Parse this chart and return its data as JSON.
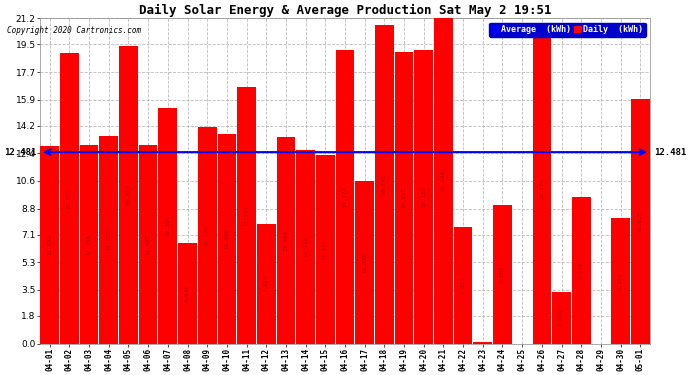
{
  "title": "Daily Solar Energy & Average Production Sat May 2 19:51",
  "copyright": "Copyright 2020 Cartronics.com",
  "average_value": 12.481,
  "bar_color": "#FF0000",
  "average_line_color": "#0000FF",
  "background_color": "#FFFFFF",
  "plot_bg_color": "#FFFFFF",
  "grid_color": "#AAAAAA",
  "categories": [
    "04-01",
    "04-02",
    "04-03",
    "04-04",
    "04-05",
    "04-06",
    "04-07",
    "04-08",
    "04-09",
    "04-10",
    "04-11",
    "04-12",
    "04-13",
    "04-14",
    "04-15",
    "04-16",
    "04-17",
    "04-18",
    "04-19",
    "04-20",
    "04-21",
    "04-22",
    "04-23",
    "04-24",
    "04-25",
    "04-26",
    "04-27",
    "04-28",
    "04-29",
    "04-30",
    "05-01"
  ],
  "values": [
    12.852,
    18.972,
    12.936,
    13.504,
    19.428,
    12.932,
    15.38,
    6.576,
    14.12,
    13.66,
    16.724,
    7.824,
    13.456,
    12.636,
    12.316,
    19.172,
    10.58,
    20.748,
    19.032,
    19.152,
    21.24,
    7.624,
    0.104,
    9.008,
    0.0,
    20.176,
    3.368,
    9.528,
    0.0,
    8.156,
    15.928
  ],
  "ylim": [
    0.0,
    21.2
  ],
  "yticks": [
    0.0,
    1.8,
    3.5,
    5.3,
    7.1,
    8.8,
    10.6,
    12.4,
    14.2,
    15.9,
    17.7,
    19.5,
    21.2
  ],
  "legend_avg_color": "#0000FF",
  "legend_daily_color": "#FF0000",
  "legend_avg_label": "Average  (kWh)",
  "legend_daily_label": "Daily  (kWh)"
}
